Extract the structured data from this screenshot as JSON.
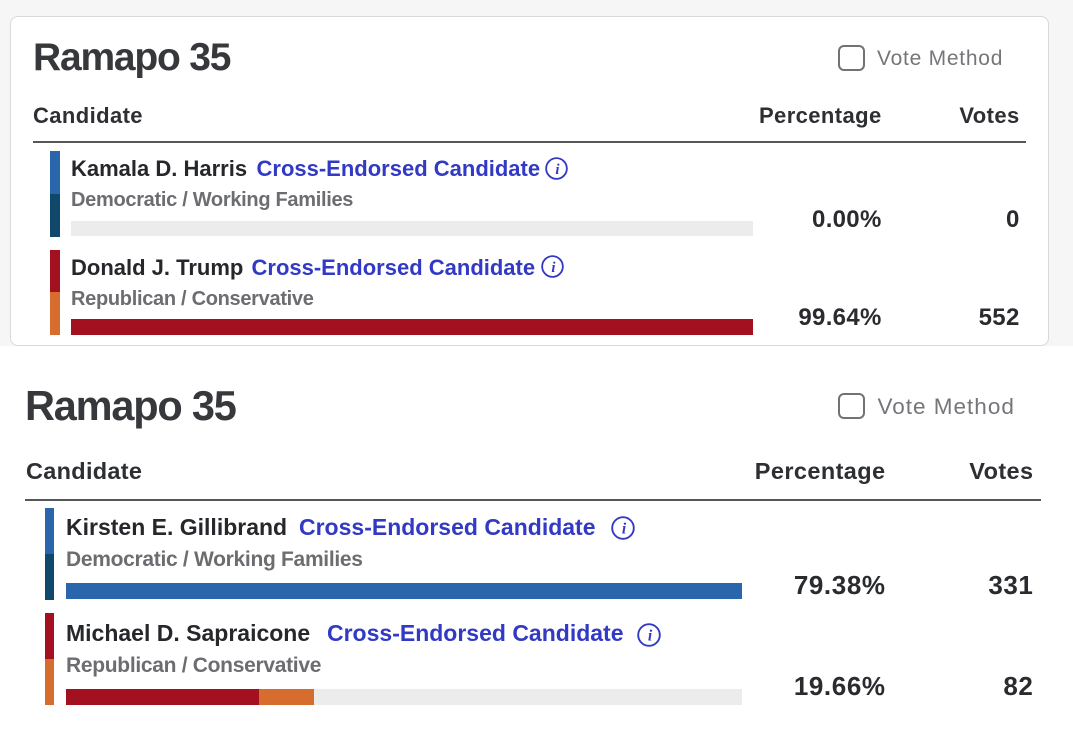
{
  "page_background": "#f6f6f7",
  "panels": [
    {
      "title": "Ramapo 35",
      "vote_method": {
        "label": "Vote Method",
        "checked": false
      },
      "columns": {
        "candidate": "Candidate",
        "percentage": "Percentage",
        "votes": "Votes"
      },
      "rows": [
        {
          "name": "Kamala D. Harris",
          "endorsement": "Cross-Endorsed Candidate",
          "info_icon": "info-circle-icon",
          "party": "Democratic / Working Families",
          "percentage": "0.00%",
          "votes": "0",
          "stripe_colors": [
            "#2a66ab",
            "#10486b"
          ],
          "bar": {
            "track_color": "#ececed",
            "segments": []
          }
        },
        {
          "name": "Donald J. Trump",
          "endorsement": "Cross-Endorsed Candidate",
          "info_icon": "info-circle-icon",
          "party": "Republican / Conservative",
          "percentage": "99.64%",
          "votes": "552",
          "stripe_colors": [
            "#a31120",
            "#d66c2d"
          ],
          "bar": {
            "track_color": "#ececed",
            "segments": [
              {
                "color": "#a31120",
                "width_pct": 100
              }
            ]
          }
        }
      ]
    },
    {
      "title": "Ramapo 35",
      "vote_method": {
        "label": "Vote Method",
        "checked": false
      },
      "columns": {
        "candidate": "Candidate",
        "percentage": "Percentage",
        "votes": "Votes"
      },
      "rows": [
        {
          "name": "Kirsten E. Gillibrand",
          "endorsement": "Cross-Endorsed Candidate",
          "info_icon": "info-circle-icon",
          "party": "Democratic / Working Families",
          "percentage": "79.38%",
          "votes": "331",
          "stripe_colors": [
            "#2a66ab",
            "#10486b"
          ],
          "bar": {
            "track_color": "#ececed",
            "segments": [
              {
                "color": "#2a66ab",
                "width_pct": 100
              }
            ]
          }
        },
        {
          "name": "Michael D. Sapraicone",
          "endorsement": "Cross-Endorsed Candidate",
          "info_icon": "info-circle-icon",
          "party": "Republican / Conservative",
          "percentage": "19.66%",
          "votes": "82",
          "stripe_colors": [
            "#a31120",
            "#d66c2d"
          ],
          "bar": {
            "track_color": "#ececed",
            "segments": [
              {
                "color": "#a31120",
                "width_pct": 28.6
              },
              {
                "color": "#d66c2d",
                "width_pct": 8.1
              }
            ]
          }
        }
      ]
    }
  ]
}
